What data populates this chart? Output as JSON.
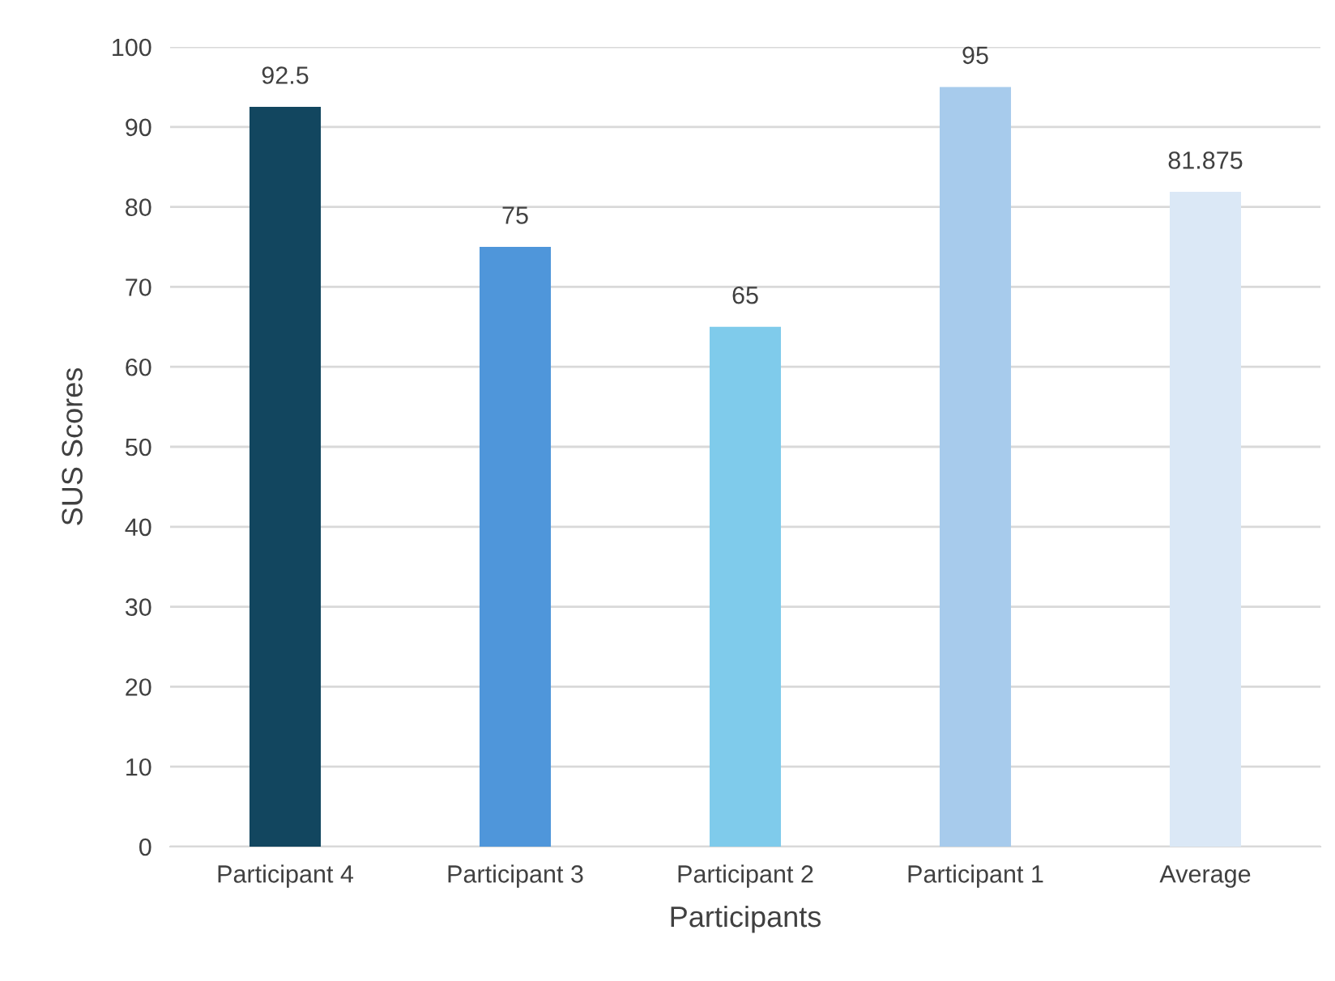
{
  "chart_data": {
    "type": "bar",
    "xlabel": "Participants",
    "ylabel": "SUS Scores",
    "categories": [
      "Participant 4",
      "Participant 3",
      "Participant 2",
      "Participant 1",
      "Average"
    ],
    "values": [
      92.5,
      75,
      65,
      95,
      81.875
    ],
    "colors": [
      "#12465f",
      "#4f96da",
      "#7fcbeb",
      "#a7cbec",
      "#dbe8f6"
    ],
    "value_labels": [
      "92.5",
      "75",
      "65",
      "95",
      "81.875"
    ],
    "ylim": [
      0,
      100
    ],
    "yticks": [
      0,
      10,
      20,
      30,
      40,
      50,
      60,
      70,
      80,
      90,
      100
    ],
    "grid": "y"
  }
}
